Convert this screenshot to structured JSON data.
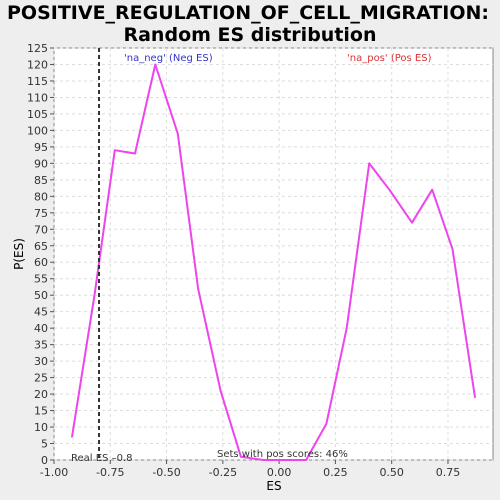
{
  "chart_data": {
    "type": "line",
    "title_line1": "POSITIVE_REGULATION_OF_CELL_MIGRATION:",
    "title_line2": "Random ES distribution",
    "xlabel": "ES",
    "ylabel": "P(ES)",
    "xlim": [
      -1.0,
      0.95
    ],
    "ylim": [
      0,
      125
    ],
    "x_ticks": [
      "-1.00",
      "-0.75",
      "-0.50",
      "-0.25",
      "0.00",
      "0.25",
      "0.50",
      "0.75"
    ],
    "x_tick_values": [
      -1.0,
      -0.75,
      -0.5,
      -0.25,
      0.0,
      0.25,
      0.5,
      0.75
    ],
    "y_ticks": [
      0,
      5,
      10,
      15,
      20,
      25,
      30,
      35,
      40,
      45,
      50,
      55,
      60,
      65,
      70,
      75,
      80,
      85,
      90,
      95,
      100,
      105,
      110,
      115,
      120,
      125
    ],
    "grid": true,
    "series": [
      {
        "color": "#ee44ee",
        "x": [
          -0.92,
          -0.82,
          -0.73,
          -0.64,
          -0.55,
          -0.45,
          -0.36,
          -0.26,
          -0.17,
          -0.07,
          0.02,
          0.12,
          0.21,
          0.3,
          0.4,
          0.49,
          0.59,
          0.68,
          0.77,
          0.87
        ],
        "y": [
          7,
          50,
          94,
          93,
          120,
          99,
          52,
          21,
          1,
          0,
          0,
          0,
          11,
          40,
          90,
          82,
          72,
          82,
          64,
          19
        ]
      }
    ],
    "neg_legend": "'na_neg' (Neg ES)",
    "neg_color": "#3333cc",
    "pos_legend": "'na_pos' (Pos ES)",
    "pos_color": "#dd3333",
    "real_es_value": -0.8,
    "real_es_label": "Real ES –0.8",
    "pos_scores_text": "Sets with pos scores: 46%"
  }
}
